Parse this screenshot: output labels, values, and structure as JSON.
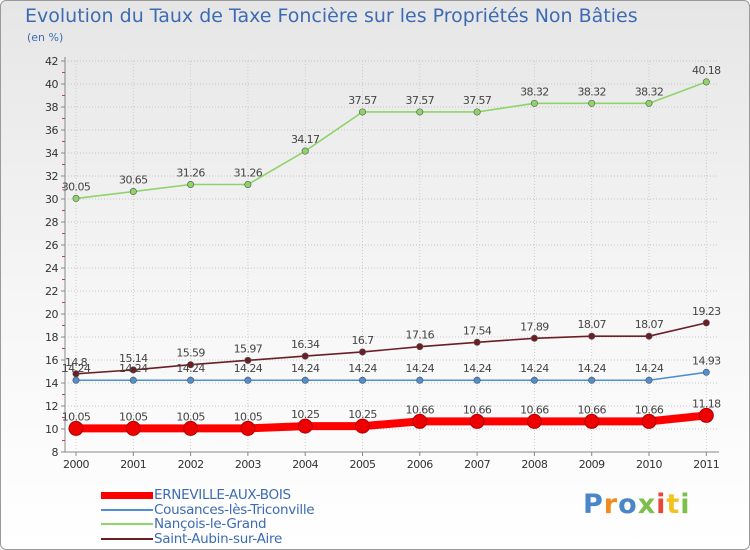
{
  "chart_data": {
    "type": "line",
    "title": "Evolution du Taux de Taxe Foncière sur les Propriétés Non Bâties",
    "subtitle": "(en %)",
    "x": [
      "2000",
      "2001",
      "2002",
      "2003",
      "2004",
      "2005",
      "2006",
      "2007",
      "2008",
      "2009",
      "2010",
      "2011"
    ],
    "ylim": [
      8,
      42
    ],
    "yticks": [
      8,
      10,
      12,
      14,
      16,
      18,
      20,
      22,
      24,
      26,
      28,
      30,
      32,
      34,
      36,
      38,
      40,
      42
    ],
    "grid": true,
    "series": [
      {
        "name": "ERNEVILLE-AUX-BOIS",
        "color": "#ff0000",
        "values": [
          10.05,
          10.05,
          10.05,
          10.05,
          10.25,
          10.25,
          10.66,
          10.66,
          10.66,
          10.66,
          10.66,
          11.18
        ],
        "labels": [
          "10.05",
          "10.05",
          "10.05",
          "10.05",
          "10.25",
          "10.25",
          "10.66",
          "10.66",
          "10.66",
          "10.66",
          "10.66",
          "11.18"
        ]
      },
      {
        "name": "Cousances-lès-Triconville",
        "color": "#4f8fd0",
        "values": [
          14.24,
          14.24,
          14.24,
          14.24,
          14.24,
          14.24,
          14.24,
          14.24,
          14.24,
          14.24,
          14.24,
          14.93
        ],
        "labels": [
          "14.24",
          "14.24",
          "14.24",
          "14.24",
          "14.24",
          "14.24",
          "14.24",
          "14.24",
          "14.24",
          "14.24",
          "14.24",
          "14.93"
        ]
      },
      {
        "name": "Nançois-le-Grand",
        "color": "#8ed46a",
        "values": [
          30.05,
          30.65,
          31.26,
          31.26,
          34.17,
          37.57,
          37.57,
          37.57,
          38.32,
          38.32,
          38.32,
          40.18
        ],
        "labels": [
          "30.05",
          "30.65",
          "31.26",
          "31.26",
          "34.17",
          "37.57",
          "37.57",
          "37.57",
          "38.32",
          "38.32",
          "38.32",
          "40.18"
        ]
      },
      {
        "name": "Saint-Aubin-sur-Aire",
        "color": "#6b1f24",
        "values": [
          14.8,
          15.14,
          15.59,
          15.97,
          16.34,
          16.7,
          17.16,
          17.54,
          17.89,
          18.07,
          18.07,
          19.23
        ],
        "labels": [
          "14.8",
          "15.14",
          "15.59",
          "15.97",
          "16.34",
          "16.7",
          "17.16",
          "17.54",
          "17.89",
          "18.07",
          "18.07",
          "19.23"
        ]
      }
    ]
  },
  "logo": {
    "text": "Proxiti",
    "letter_colors": [
      "#4a86c8",
      "#f28a1e",
      "#4a86c8",
      "#7cc04b",
      "#e8473a",
      "#f2c21e",
      "#7cc04b"
    ]
  }
}
